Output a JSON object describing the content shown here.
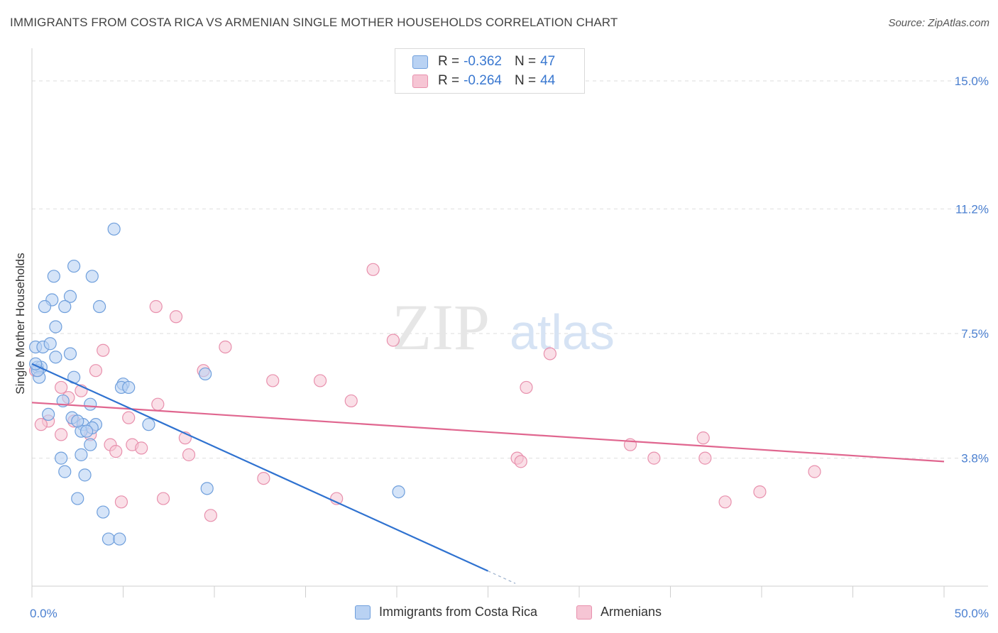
{
  "title": "IMMIGRANTS FROM COSTA RICA VS ARMENIAN SINGLE MOTHER HOUSEHOLDS CORRELATION CHART",
  "source": "Source: ZipAtlas.com",
  "watermark": {
    "zip": "ZIP",
    "atlas": "atlas"
  },
  "colors": {
    "blue_fill": "#b9d2f3",
    "blue_stroke": "#6f9fdc",
    "blue_line": "#2f72d0",
    "pink_fill": "#f6c5d4",
    "pink_stroke": "#e890ad",
    "pink_line": "#e0668f",
    "tick_text": "#4a7fd0"
  },
  "legend_top": [
    {
      "r_label": "R =",
      "r_value": "-0.362",
      "n_label": "N =",
      "n_value": "47",
      "series": "blue"
    },
    {
      "r_label": "R =",
      "r_value": "-0.264",
      "n_label": "N =",
      "n_value": "44",
      "series": "pink"
    }
  ],
  "chart_data": {
    "type": "scatter",
    "title": "IMMIGRANTS FROM COSTA RICA VS ARMENIAN SINGLE MOTHER HOUSEHOLDS CORRELATION CHART",
    "xlabel": "",
    "ylabel": "Single Mother Households",
    "xlim": [
      0,
      50
    ],
    "ylim": [
      0,
      15.8
    ],
    "x_tick_labels": [
      "0.0%",
      "50.0%"
    ],
    "y_ticks": [
      {
        "value": 3.8,
        "label": "3.8%"
      },
      {
        "value": 7.5,
        "label": "7.5%"
      },
      {
        "value": 11.2,
        "label": "11.2%"
      },
      {
        "value": 15.0,
        "label": "15.0%"
      }
    ],
    "grid": "horizontal-dashed",
    "legend_position": "top-center",
    "series": [
      {
        "name": "Immigrants from Costa Rica",
        "color": "#6f9fdc",
        "points": [
          [
            4.5,
            10.6
          ],
          [
            2.3,
            9.5
          ],
          [
            1.2,
            9.2
          ],
          [
            3.3,
            9.2
          ],
          [
            2.1,
            8.6
          ],
          [
            1.1,
            8.5
          ],
          [
            0.7,
            8.3
          ],
          [
            1.8,
            8.3
          ],
          [
            3.7,
            8.3
          ],
          [
            1.3,
            7.7
          ],
          [
            0.2,
            7.1
          ],
          [
            0.6,
            7.1
          ],
          [
            1.0,
            7.2
          ],
          [
            2.1,
            6.9
          ],
          [
            1.3,
            6.8
          ],
          [
            0.3,
            6.5
          ],
          [
            0.5,
            6.5
          ],
          [
            0.4,
            6.2
          ],
          [
            2.3,
            6.2
          ],
          [
            9.5,
            6.3
          ],
          [
            5.0,
            6.0
          ],
          [
            4.9,
            5.9
          ],
          [
            5.3,
            5.9
          ],
          [
            1.7,
            5.5
          ],
          [
            3.2,
            5.4
          ],
          [
            0.9,
            5.1
          ],
          [
            2.2,
            5.0
          ],
          [
            2.8,
            4.8
          ],
          [
            3.5,
            4.8
          ],
          [
            6.4,
            4.8
          ],
          [
            2.7,
            4.6
          ],
          [
            3.3,
            4.7
          ],
          [
            3.2,
            4.2
          ],
          [
            2.7,
            3.9
          ],
          [
            1.6,
            3.8
          ],
          [
            1.8,
            3.4
          ],
          [
            2.9,
            3.3
          ],
          [
            9.6,
            2.9
          ],
          [
            20.1,
            2.8
          ],
          [
            2.5,
            2.6
          ],
          [
            3.9,
            2.2
          ],
          [
            4.2,
            1.4
          ],
          [
            4.8,
            1.4
          ],
          [
            3.0,
            4.6
          ],
          [
            2.5,
            4.9
          ],
          [
            0.3,
            6.4
          ],
          [
            0.2,
            6.6
          ]
        ],
        "trend": {
          "x1": 0.0,
          "y1": 6.6,
          "x2": 25.0,
          "y2": 0.45
        },
        "trend_dashed_extension": {
          "x1": 25.0,
          "y1": 0.45,
          "x2": 26.5,
          "y2": 0.08
        }
      },
      {
        "name": "Armenians",
        "color": "#e890ad",
        "points": [
          [
            18.7,
            9.4
          ],
          [
            6.8,
            8.3
          ],
          [
            7.9,
            8.0
          ],
          [
            19.8,
            7.3
          ],
          [
            10.6,
            7.1
          ],
          [
            3.9,
            7.0
          ],
          [
            28.4,
            6.9
          ],
          [
            9.4,
            6.4
          ],
          [
            3.5,
            6.4
          ],
          [
            13.2,
            6.1
          ],
          [
            15.8,
            6.1
          ],
          [
            27.1,
            5.9
          ],
          [
            1.6,
            5.9
          ],
          [
            2.7,
            5.8
          ],
          [
            2.0,
            5.6
          ],
          [
            17.5,
            5.5
          ],
          [
            6.9,
            5.4
          ],
          [
            5.3,
            5.0
          ],
          [
            2.3,
            4.9
          ],
          [
            0.9,
            4.9
          ],
          [
            0.5,
            4.8
          ],
          [
            3.2,
            4.5
          ],
          [
            1.6,
            4.5
          ],
          [
            8.4,
            4.4
          ],
          [
            36.8,
            4.4
          ],
          [
            4.3,
            4.2
          ],
          [
            5.5,
            4.2
          ],
          [
            6.0,
            4.1
          ],
          [
            32.8,
            4.2
          ],
          [
            4.6,
            4.0
          ],
          [
            8.6,
            3.9
          ],
          [
            26.6,
            3.8
          ],
          [
            34.1,
            3.8
          ],
          [
            36.9,
            3.8
          ],
          [
            26.8,
            3.7
          ],
          [
            42.9,
            3.4
          ],
          [
            12.7,
            3.2
          ],
          [
            39.9,
            2.8
          ],
          [
            16.7,
            2.6
          ],
          [
            7.2,
            2.6
          ],
          [
            4.9,
            2.5
          ],
          [
            38.0,
            2.5
          ],
          [
            9.8,
            2.1
          ],
          [
            0.2,
            6.4
          ]
        ],
        "trend": {
          "x1": 0.0,
          "y1": 5.45,
          "x2": 50.0,
          "y2": 3.7
        }
      }
    ]
  },
  "bottom_legend": [
    {
      "label": "Immigrants from Costa Rica",
      "series": "blue"
    },
    {
      "label": "Armenians",
      "series": "pink"
    }
  ]
}
